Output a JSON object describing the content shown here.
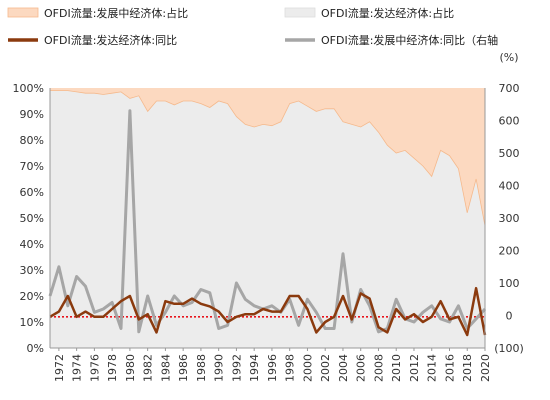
{
  "chart_data": {
    "type": "area+line",
    "title": "",
    "legend_position": "top",
    "legend": [
      {
        "label": "OFDI流量:发展中经济体:占比",
        "kind": "area",
        "color": "#fcd9c0",
        "edge": "#f5b98c"
      },
      {
        "label": "OFDI流量:发达经济体:占比",
        "kind": "area",
        "color": "#ececec",
        "edge": "#dddddd"
      },
      {
        "label": "OFDI流量:发达经济体:同比",
        "kind": "line",
        "color": "#8b3a0e"
      },
      {
        "label": "OFDI流量:发展中经济体:同比（右轴",
        "kind": "line",
        "color": "#a6a6a6"
      }
    ],
    "right_axis_unit": "(%)",
    "left_axis": {
      "ticks": [
        "0%",
        "10%",
        "20%",
        "30%",
        "40%",
        "50%",
        "60%",
        "70%",
        "80%",
        "90%",
        "100%"
      ],
      "ylim": [
        0,
        100
      ]
    },
    "right_axis": {
      "ticks": [
        "(100)",
        "0",
        "100",
        "200",
        "300",
        "400",
        "500",
        "600",
        "700"
      ],
      "ylim": [
        -100,
        700
      ]
    },
    "x_tick_labels": [
      "1972",
      "1974",
      "1976",
      "1978",
      "1980",
      "1982",
      "1984",
      "1986",
      "1988",
      "1990",
      "1992",
      "1994",
      "1996",
      "1998",
      "2000",
      "2002",
      "2004",
      "2006",
      "2008",
      "2010",
      "2012",
      "2014",
      "2016",
      "2018",
      "2020"
    ],
    "years": [
      1971,
      1972,
      1973,
      1974,
      1975,
      1976,
      1977,
      1978,
      1979,
      1980,
      1981,
      1982,
      1983,
      1984,
      1985,
      1986,
      1987,
      1988,
      1989,
      1990,
      1991,
      1992,
      1993,
      1994,
      1995,
      1996,
      1997,
      1998,
      1999,
      2000,
      2001,
      2002,
      2003,
      2004,
      2005,
      2006,
      2007,
      2008,
      2009,
      2010,
      2011,
      2012,
      2013,
      2014,
      2015,
      2016,
      2017,
      2018,
      2019,
      2020
    ],
    "developed_share": [
      99,
      99,
      99,
      98.5,
      98,
      98,
      97.5,
      98,
      98.5,
      96,
      97,
      91,
      95,
      95,
      93.5,
      95,
      95,
      94,
      92.5,
      95,
      94,
      89,
      86,
      85,
      86,
      85.5,
      87,
      94,
      95,
      93,
      91,
      92,
      92,
      87,
      86,
      85,
      87,
      83,
      78,
      75,
      76,
      73,
      70,
      66,
      76,
      74,
      69,
      52,
      65,
      47
    ],
    "developing_share_comment": "equals 100 minus developed_share",
    "developed_yoy": [
      12,
      14,
      20,
      12,
      14,
      12,
      12,
      15,
      18,
      20,
      11,
      13,
      6,
      18,
      17,
      17,
      19,
      17,
      16,
      14,
      10,
      12,
      13,
      13,
      15,
      14,
      14,
      20,
      20,
      15,
      6,
      10,
      12,
      20,
      11,
      21,
      19,
      8,
      6,
      15,
      11,
      13,
      10,
      12,
      18,
      11,
      12,
      5,
      23,
      5
    ],
    "developing_yoy": [
      60,
      150,
      30,
      120,
      90,
      10,
      20,
      40,
      -40,
      630,
      -50,
      60,
      -30,
      10,
      60,
      30,
      40,
      80,
      70,
      -40,
      -30,
      100,
      50,
      30,
      20,
      30,
      10,
      50,
      -30,
      50,
      10,
      -40,
      -40,
      190,
      -20,
      80,
      30,
      -50,
      -40,
      50,
      -10,
      -20,
      10,
      30,
      -10,
      -20,
      30,
      -40,
      -10,
      20
    ],
    "reference_line": {
      "axis": "left",
      "value": 12,
      "color": "#e8141c",
      "style": "dotted"
    }
  }
}
